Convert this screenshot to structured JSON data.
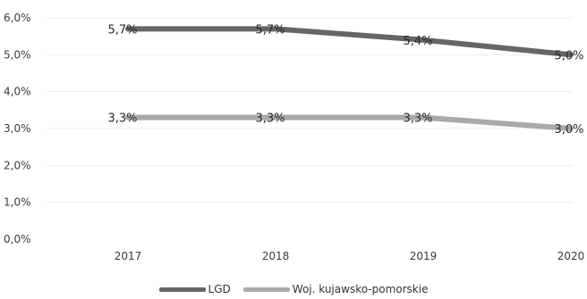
{
  "chart_data": {
    "type": "line",
    "title": "",
    "xlabel": "",
    "ylabel": "",
    "categories": [
      "2017",
      "2018",
      "2019",
      "2020"
    ],
    "ylim": [
      0,
      6
    ],
    "yticks": [
      "0,0%",
      "1,0%",
      "2,0%",
      "3,0%",
      "4,0%",
      "5,0%",
      "6,0%"
    ],
    "grid": true,
    "legend_position": "bottom",
    "series": [
      {
        "name": "LGD",
        "values": [
          5.7,
          5.7,
          5.4,
          5.0
        ],
        "labels": [
          "5,7%",
          "5,7%",
          "5,4%",
          "5,0%"
        ],
        "color": "#666666"
      },
      {
        "name": "Woj. kujawsko-pomorskie",
        "values": [
          3.3,
          3.3,
          3.3,
          3.0
        ],
        "labels": [
          "3,3%",
          "3,3%",
          "3,3%",
          "3,0%"
        ],
        "color": "#a9a9a9"
      }
    ]
  }
}
